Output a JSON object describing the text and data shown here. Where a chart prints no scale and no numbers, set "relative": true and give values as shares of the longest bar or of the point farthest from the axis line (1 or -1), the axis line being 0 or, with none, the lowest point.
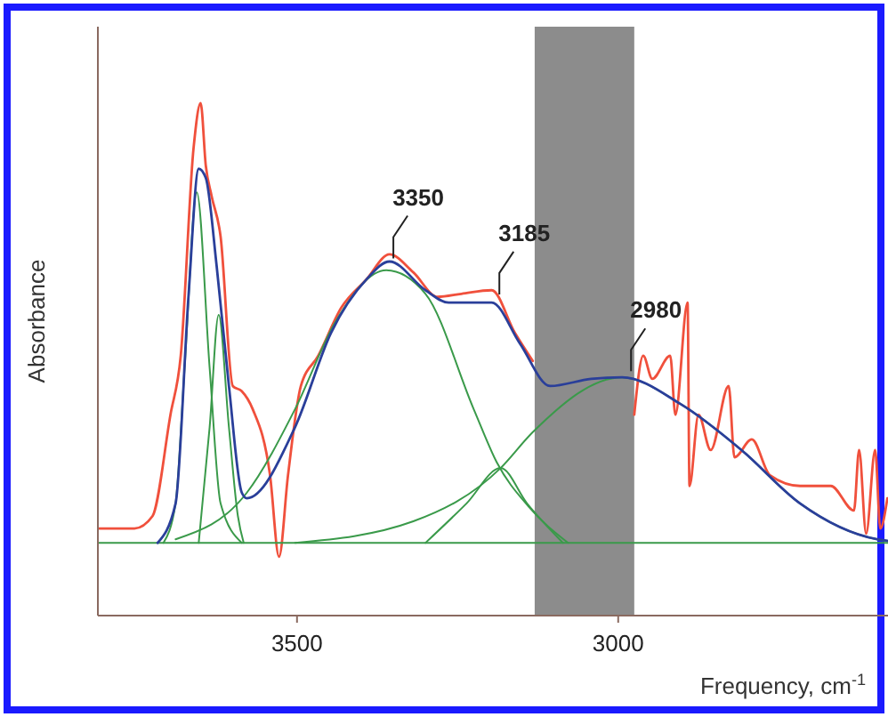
{
  "chart_data": {
    "type": "line",
    "relative": true,
    "xlabel": "Frequency, cm$^{-1}$",
    "ylabel": "Absorbance",
    "xlim": [
      3810,
      2580
    ],
    "xticks": [
      3500,
      3000
    ],
    "tick_labels": "x",
    "grid": false,
    "marker": "none",
    "line_style": "solid",
    "bands": [
      {
        "axis": "x",
        "from": 3130,
        "to": 2975,
        "color": "#8c8c8c"
      }
    ],
    "annotations": [
      {
        "text": "3350",
        "x": 3350,
        "y": 0.69
      },
      {
        "text": "3185",
        "x": 3185,
        "y": 0.62
      },
      {
        "text": "2980",
        "x": 2980,
        "y": 0.47
      }
    ],
    "series": [
      {
        "color": "#f0503c",
        "x": [
          3808,
          3753,
          3725,
          3697,
          3681,
          3661,
          3650,
          3642,
          3633,
          3619,
          3600,
          3586,
          3569,
          3542,
          3528,
          3514,
          3494,
          3467,
          3431,
          3392,
          3356,
          3319,
          3281,
          3244,
          3197,
          3161,
          3133,
          3050,
          2975,
          2961,
          2947,
          2919,
          2911,
          2892,
          2889,
          2875,
          2856,
          2828,
          2819,
          2792,
          2764,
          2717,
          2669,
          2633,
          2625,
          2614,
          2600,
          2592,
          2581
        ],
        "values": [
          0.17,
          0.17,
          0.194,
          0.392,
          0.507,
          0.913,
          1.0,
          0.878,
          0.819,
          0.74,
          0.448,
          0.438,
          0.403,
          0.274,
          0.115,
          0.274,
          0.448,
          0.507,
          0.601,
          0.656,
          0.705,
          0.67,
          0.622,
          0.628,
          0.635,
          0.552,
          0.497,
          null,
          0.392,
          0.507,
          0.462,
          0.507,
          0.392,
          0.611,
          0.253,
          0.392,
          0.323,
          0.448,
          0.309,
          0.344,
          0.274,
          0.253,
          0.253,
          0.205,
          0.323,
          0.16,
          0.323,
          0.17,
          0.229
        ]
      },
      {
        "color": "#3a9a4a",
        "x": [
          3810,
          2580
        ],
        "values": [
          0.142,
          0.142
        ]
      },
      {
        "color": "#3a9a4a",
        "x": [
          3708,
          3689,
          3675,
          3656,
          3636,
          3619,
          3586
        ],
        "values": [
          0.142,
          0.219,
          0.483,
          0.826,
          0.483,
          0.219,
          0.142
        ]
      },
      {
        "color": "#3a9a4a",
        "x": [
          3653,
          3636,
          3622,
          3606,
          3592,
          3583
        ],
        "values": [
          0.142,
          0.368,
          0.587,
          0.368,
          0.194,
          0.142
        ]
      },
      {
        "color": "#3a9a4a",
        "x": [
          3689,
          3578,
          3503,
          3439,
          3361,
          3300,
          3225,
          3189,
          3139,
          3078
        ],
        "values": [
          0.149,
          0.24,
          0.403,
          0.576,
          0.674,
          0.628,
          0.403,
          0.299,
          0.212,
          0.142
        ]
      },
      {
        "color": "#3a9a4a",
        "x": [
          3300,
          3236,
          3183,
          3142,
          3086
        ],
        "values": [
          0.142,
          0.219,
          0.288,
          0.219,
          0.142
        ]
      },
      {
        "color": "#3a9a4a",
        "x": [
          3503,
          3319,
          3183,
          3133,
          2994,
          2903,
          2808,
          2717,
          2597,
          2581
        ],
        "values": [
          0.142,
          0.184,
          0.288,
          0.358,
          0.465,
          0.413,
          0.323,
          0.219,
          0.149,
          0.146
        ]
      },
      {
        "color": "#2a3f9a",
        "x": [
          3717,
          3689,
          3669,
          3653,
          3642,
          3625,
          3606,
          3586,
          3578,
          3503,
          3447,
          3392,
          3356,
          3300,
          3264,
          3197,
          3153,
          3106,
          3042,
          2994,
          2903,
          2808,
          2717,
          2597,
          2581
        ],
        "values": [
          0.142,
          0.219,
          0.622,
          0.872,
          0.854,
          0.681,
          0.448,
          0.24,
          0.229,
          0.368,
          0.552,
          0.656,
          0.691,
          0.635,
          0.611,
          0.611,
          0.531,
          0.448,
          0.462,
          0.465,
          0.413,
          0.323,
          0.219,
          0.149,
          0.146
        ]
      }
    ]
  }
}
